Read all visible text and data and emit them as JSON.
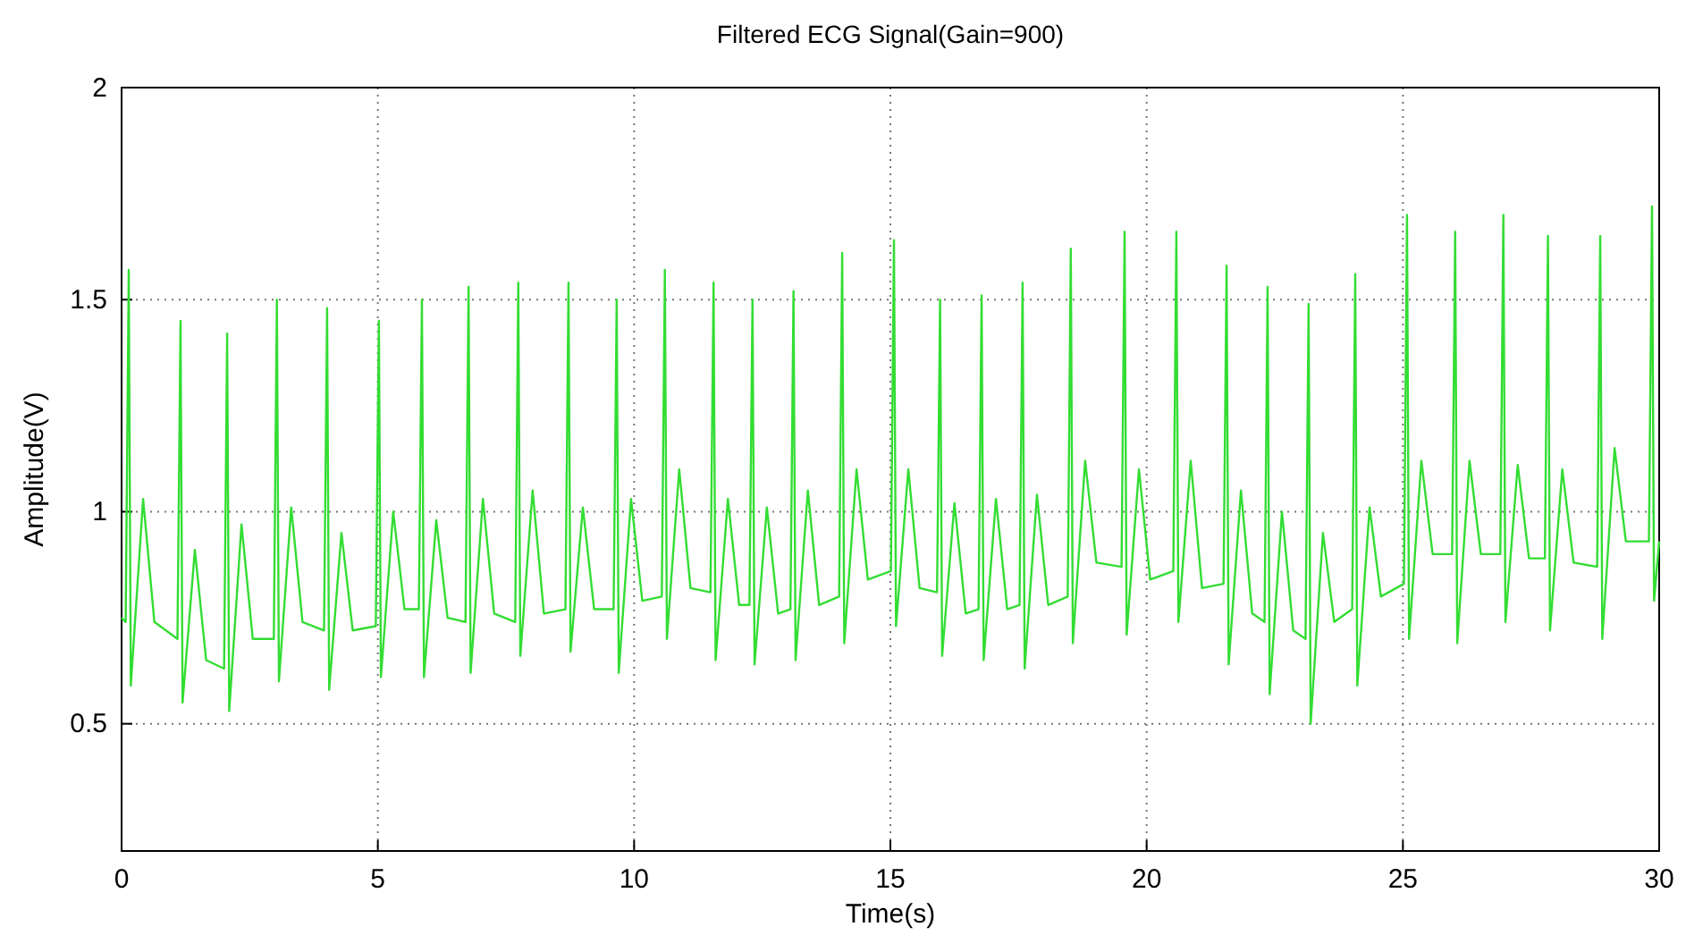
{
  "chart_data": {
    "type": "line",
    "title": "Filtered ECG Signal(Gain=900)",
    "xlabel": "Time(s)",
    "ylabel": "Amplitude(V)",
    "xlim": [
      0,
      30
    ],
    "xticks": [
      0,
      5,
      10,
      15,
      20,
      25,
      30
    ],
    "ylim": [
      0.2,
      2
    ],
    "yticks": [
      0.5,
      1,
      1.5,
      2
    ],
    "grid": true,
    "series": [
      {
        "color": "#33dd33",
        "x": [
          0,
          0.08,
          0.14,
          0.18,
          0.42,
          0.64,
          1.09,
          1.15,
          1.19,
          1.43,
          1.65,
          2.0,
          2.06,
          2.1,
          2.34,
          2.56,
          2.97,
          3.03,
          3.07,
          3.31,
          3.53,
          3.95,
          4.01,
          4.05,
          4.29,
          4.51,
          4.96,
          5.02,
          5.06,
          5.3,
          5.52,
          5.8,
          5.86,
          5.9,
          6.14,
          6.36,
          6.71,
          6.77,
          6.81,
          7.05,
          7.27,
          7.68,
          7.74,
          7.78,
          8.02,
          8.24,
          8.66,
          8.72,
          8.76,
          9.0,
          9.22,
          9.6,
          9.66,
          9.7,
          9.94,
          10.16,
          10.54,
          10.6,
          10.64,
          10.88,
          11.1,
          11.49,
          11.55,
          11.59,
          11.83,
          12.05,
          12.25,
          12.31,
          12.35,
          12.59,
          12.81,
          13.05,
          13.11,
          13.15,
          13.39,
          13.61,
          14.0,
          14.06,
          14.1,
          14.34,
          14.56,
          15.01,
          15.07,
          15.11,
          15.35,
          15.57,
          15.91,
          15.97,
          16.01,
          16.25,
          16.47,
          16.72,
          16.78,
          16.82,
          17.06,
          17.28,
          17.52,
          17.58,
          17.62,
          17.86,
          18.08,
          18.46,
          18.52,
          18.56,
          18.8,
          19.02,
          19.51,
          19.57,
          19.61,
          19.85,
          20.07,
          20.52,
          20.58,
          20.62,
          20.86,
          21.08,
          21.5,
          21.56,
          21.6,
          21.84,
          22.06,
          22.3,
          22.36,
          22.4,
          22.64,
          22.86,
          23.1,
          23.16,
          23.2,
          23.44,
          23.66,
          24.01,
          24.07,
          24.11,
          24.35,
          24.57,
          25.02,
          25.08,
          25.12,
          25.36,
          25.58,
          25.96,
          26.02,
          26.06,
          26.3,
          26.52,
          26.9,
          26.96,
          27.0,
          27.24,
          27.46,
          27.77,
          27.83,
          27.87,
          28.11,
          28.33,
          28.79,
          28.85,
          28.89,
          29.13,
          29.35,
          29.8,
          29.86,
          29.9,
          30
        ],
        "values": [
          0.75,
          0.74,
          1.57,
          0.59,
          1.03,
          0.74,
          0.7,
          1.45,
          0.55,
          0.91,
          0.65,
          0.63,
          1.42,
          0.53,
          0.97,
          0.7,
          0.7,
          1.5,
          0.6,
          1.01,
          0.74,
          0.72,
          1.48,
          0.58,
          0.95,
          0.72,
          0.73,
          1.45,
          0.61,
          1.0,
          0.77,
          0.77,
          1.5,
          0.61,
          0.98,
          0.75,
          0.74,
          1.53,
          0.62,
          1.03,
          0.76,
          0.74,
          1.54,
          0.66,
          1.05,
          0.76,
          0.77,
          1.54,
          0.67,
          1.01,
          0.77,
          0.77,
          1.5,
          0.62,
          1.03,
          0.79,
          0.8,
          1.57,
          0.7,
          1.1,
          0.82,
          0.81,
          1.54,
          0.65,
          1.03,
          0.78,
          0.78,
          1.5,
          0.64,
          1.01,
          0.76,
          0.77,
          1.52,
          0.65,
          1.05,
          0.78,
          0.8,
          1.61,
          0.69,
          1.1,
          0.84,
          0.86,
          1.64,
          0.73,
          1.1,
          0.82,
          0.81,
          1.5,
          0.66,
          1.02,
          0.76,
          0.77,
          1.51,
          0.65,
          1.03,
          0.77,
          0.78,
          1.54,
          0.63,
          1.04,
          0.78,
          0.8,
          1.62,
          0.69,
          1.12,
          0.88,
          0.87,
          1.66,
          0.71,
          1.1,
          0.84,
          0.86,
          1.66,
          0.74,
          1.12,
          0.82,
          0.83,
          1.58,
          0.64,
          1.05,
          0.76,
          0.74,
          1.53,
          0.57,
          1.0,
          0.72,
          0.7,
          1.49,
          0.5,
          0.95,
          0.74,
          0.77,
          1.56,
          0.59,
          1.01,
          0.8,
          0.83,
          1.7,
          0.7,
          1.12,
          0.9,
          0.9,
          1.66,
          0.69,
          1.12,
          0.9,
          0.9,
          1.7,
          0.74,
          1.11,
          0.89,
          0.89,
          1.65,
          0.72,
          1.1,
          0.88,
          0.87,
          1.65,
          0.7,
          1.15,
          0.93,
          0.93,
          1.72,
          0.79,
          0.93
        ]
      }
    ]
  }
}
